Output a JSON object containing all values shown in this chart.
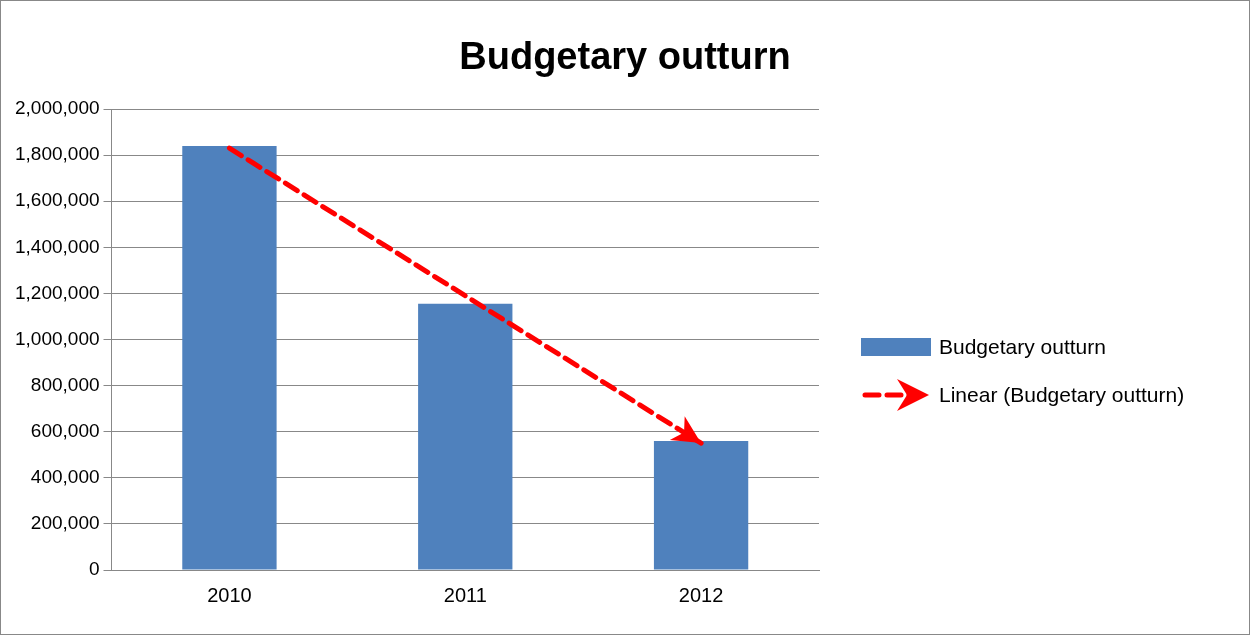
{
  "chart_data": {
    "type": "bar",
    "title": "Budgetary outturn",
    "categories": [
      "2010",
      "2011",
      "2012"
    ],
    "series": [
      {
        "name": "Budgetary outturn",
        "color": "#4f81bd",
        "values": [
          1840000,
          1155000,
          560000
        ]
      },
      {
        "name": "Linear (Budgetary outturn)",
        "type": "line",
        "color": "#ff0000",
        "line_style": "dashed",
        "marker": "none",
        "values": [
          1830000,
          1190000,
          550000
        ]
      }
    ],
    "ylim": [
      0,
      2000000
    ],
    "yticks": [
      {
        "value": 0,
        "label": "0"
      },
      {
        "value": 200000,
        "label": "200,000"
      },
      {
        "value": 400000,
        "label": "400,000"
      },
      {
        "value": 600000,
        "label": "600,000"
      },
      {
        "value": 800000,
        "label": "800,000"
      },
      {
        "value": 1000000,
        "label": "1,000,000"
      },
      {
        "value": 1200000,
        "label": "1,200,000"
      },
      {
        "value": 1400000,
        "label": "1,400,000"
      },
      {
        "value": 1600000,
        "label": "1,600,000"
      },
      {
        "value": 1800000,
        "label": "1,800,000"
      },
      {
        "value": 2000000,
        "label": "2,000,000"
      }
    ],
    "grid": "y",
    "legend": "right"
  }
}
